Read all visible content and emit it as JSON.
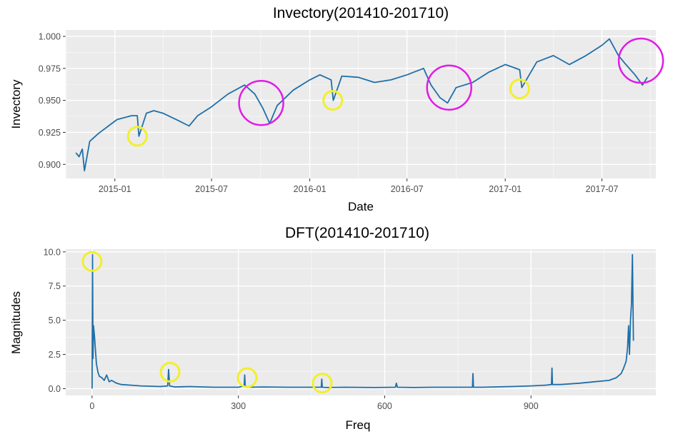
{
  "colors": {
    "panel_background": "#ebebeb",
    "grid_major": "#ffffff",
    "line": "#1f6fa8",
    "circle_magenta": "#e01be8",
    "circle_yellow": "#f2ef2c"
  },
  "chart_data": [
    {
      "type": "line",
      "title": "Invectory(201410-201710)",
      "xlabel": "Date",
      "ylabel": "Invectory",
      "x_ticks": [
        "2015-01",
        "2015-07",
        "2016-01",
        "2016-07",
        "2017-01",
        "2017-07"
      ],
      "y_ticks": [
        "0.900",
        "0.925",
        "0.950",
        "0.975",
        "1.000"
      ],
      "xlim": [
        "2014-10-01",
        "2017-10-10"
      ],
      "ylim": [
        0.889,
        1.005
      ],
      "grid": true,
      "series": [
        {
          "x": [
            "2014-10-20",
            "2014-10-26",
            "2014-11-01",
            "2014-11-05",
            "2014-11-15",
            "2014-12-01",
            "2014-12-20",
            "2015-01-05",
            "2015-02-01",
            "2015-02-12",
            "2015-02-15",
            "2015-03-01",
            "2015-03-15",
            "2015-04-01",
            "2015-05-01",
            "2015-05-20",
            "2015-06-05",
            "2015-07-01",
            "2015-08-01",
            "2015-09-01",
            "2015-09-20",
            "2015-10-05",
            "2015-10-18",
            "2015-11-01",
            "2015-12-01",
            "2016-01-01",
            "2016-01-20",
            "2016-02-10",
            "2016-02-14",
            "2016-03-01",
            "2016-04-01",
            "2016-05-01",
            "2016-06-01",
            "2016-07-01",
            "2016-08-01",
            "2016-08-15",
            "2016-09-01",
            "2016-09-15",
            "2016-10-01",
            "2016-11-01",
            "2016-12-01",
            "2017-01-01",
            "2017-01-28",
            "2017-02-01",
            "2017-03-01",
            "2017-04-01",
            "2017-05-01",
            "2017-06-01",
            "2017-07-01",
            "2017-07-15",
            "2017-08-01",
            "2017-08-15",
            "2017-09-01",
            "2017-09-15",
            "2017-09-24"
          ],
          "y": [
            0.909,
            0.906,
            0.912,
            0.895,
            0.918,
            0.924,
            0.93,
            0.935,
            0.938,
            0.938,
            0.922,
            0.94,
            0.942,
            0.94,
            0.934,
            0.93,
            0.938,
            0.945,
            0.955,
            0.962,
            0.955,
            0.944,
            0.932,
            0.946,
            0.958,
            0.966,
            0.97,
            0.966,
            0.95,
            0.969,
            0.968,
            0.964,
            0.966,
            0.97,
            0.975,
            0.962,
            0.952,
            0.948,
            0.96,
            0.964,
            0.972,
            0.978,
            0.974,
            0.96,
            0.98,
            0.985,
            0.978,
            0.985,
            0.993,
            0.998,
            0.985,
            0.978,
            0.97,
            0.962,
            0.968
          ]
        }
      ],
      "annotations": [
        {
          "shape": "circle",
          "color": "magenta",
          "center": [
            "2015-10-02",
            0.948
          ]
        },
        {
          "shape": "circle",
          "color": "magenta",
          "center": [
            "2016-09-18",
            0.96
          ]
        },
        {
          "shape": "circle",
          "color": "magenta",
          "center": [
            "2017-09-12",
            0.981
          ]
        },
        {
          "shape": "circle",
          "color": "yellow",
          "center": [
            "2015-02-12",
            0.922
          ]
        },
        {
          "shape": "circle",
          "color": "yellow",
          "center": [
            "2016-02-13",
            0.95
          ]
        },
        {
          "shape": "circle",
          "color": "yellow",
          "center": [
            "2017-01-28",
            0.959
          ]
        }
      ]
    },
    {
      "type": "line",
      "title": "DFT(201410-201710)",
      "xlabel": "Freq",
      "ylabel": "Magnitudes",
      "x_ticks": [
        "0",
        "300",
        "600",
        "900"
      ],
      "y_ticks": [
        "0.0",
        "2.5",
        "5.0",
        "7.5",
        "10.0"
      ],
      "xlim": [
        -54,
        1156
      ],
      "ylim": [
        -0.5,
        10.2
      ],
      "grid": true,
      "series": [
        {
          "x": [
            0,
            1,
            2,
            3,
            5,
            7,
            9,
            12,
            15,
            20,
            25,
            30,
            35,
            40,
            50,
            60,
            80,
            100,
            140,
            155,
            157,
            159,
            170,
            200,
            250,
            300,
            312,
            313,
            314,
            320,
            350,
            400,
            460,
            470,
            471,
            472,
            480,
            520,
            580,
            622,
            624,
            626,
            660,
            700,
            760,
            780,
            781,
            782,
            800,
            860,
            900,
            930,
            942,
            943,
            944,
            960,
            1000,
            1030,
            1060,
            1075,
            1085,
            1090,
            1095,
            1098,
            1100,
            1102,
            1104,
            1106,
            1108,
            1110
          ],
          "y": [
            0.0,
            9.8,
            2.2,
            4.6,
            3.8,
            2.8,
            1.8,
            1.2,
            0.9,
            0.8,
            0.6,
            1.0,
            0.5,
            0.6,
            0.4,
            0.3,
            0.25,
            0.2,
            0.15,
            0.2,
            1.4,
            0.2,
            0.12,
            0.15,
            0.1,
            0.1,
            0.2,
            1.0,
            0.2,
            0.1,
            0.12,
            0.1,
            0.1,
            0.1,
            0.7,
            0.1,
            0.08,
            0.1,
            0.08,
            0.1,
            0.4,
            0.1,
            0.08,
            0.1,
            0.1,
            0.1,
            1.1,
            0.1,
            0.1,
            0.15,
            0.2,
            0.25,
            0.3,
            1.5,
            0.3,
            0.3,
            0.4,
            0.5,
            0.6,
            0.8,
            1.1,
            1.5,
            2.0,
            3.0,
            4.6,
            2.5,
            5.0,
            6.2,
            9.8,
            3.5
          ]
        }
      ],
      "annotations": [
        {
          "shape": "circle",
          "color": "yellow",
          "center": [
            0,
            9.3
          ]
        },
        {
          "shape": "circle",
          "color": "yellow",
          "center": [
            160,
            1.2
          ]
        },
        {
          "shape": "circle",
          "color": "yellow",
          "center": [
            318,
            0.8
          ]
        },
        {
          "shape": "circle",
          "color": "yellow",
          "center": [
            472,
            0.4
          ]
        }
      ]
    }
  ]
}
